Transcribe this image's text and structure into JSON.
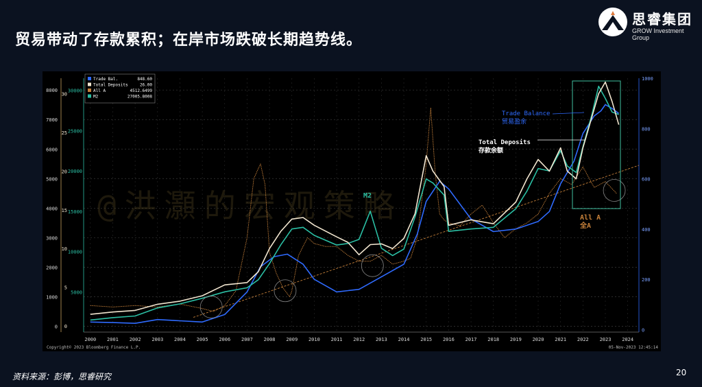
{
  "slide": {
    "title": "贸易带动了存款累积；在岸市场跌破长期趋势线。",
    "logo_cn": "思睿集团",
    "logo_en": "GROW Investment Group",
    "source": "资料来源：彭博，思睿研究",
    "page_number": "20"
  },
  "chart_data": {
    "type": "line",
    "copyright": "Copyright© 2023 Bloomberg Finance L.P.",
    "timestamp": "05-Nov-2023 12:45:14",
    "x_ticks": [
      "2000",
      "2001",
      "2002",
      "2003",
      "2004",
      "2005",
      "2006",
      "2007",
      "2008",
      "2009",
      "2010",
      "2011",
      "2012",
      "2013",
      "2014",
      "2015",
      "2016",
      "2017",
      "2018",
      "2019",
      "2020",
      "2021",
      "2022",
      "2023",
      "2024"
    ],
    "xlim": [
      1999.7,
      2024.5
    ],
    "axes": {
      "allA": {
        "ticks": [
          "0",
          "1000",
          "2000",
          "3000",
          "4000",
          "5000",
          "6000",
          "7000",
          "8000"
        ],
        "ylim": [
          -200,
          8400
        ]
      },
      "deposits": {
        "ticks": [
          "0",
          "5",
          "10",
          "15",
          "20",
          "25",
          "30"
        ],
        "ylim": [
          -0.8,
          32
        ]
      },
      "m2": {
        "ticks": [
          "5000",
          "10000",
          "15000",
          "20000",
          "25000",
          "30000"
        ],
        "ylim": [
          0,
          31500
        ]
      },
      "trade": {
        "ticks": [
          "0",
          "200",
          "400",
          "600",
          "800",
          "1000"
        ],
        "ylim": [
          -10,
          1000
        ]
      }
    },
    "legend": [
      {
        "name": "Trade Bal.",
        "value": "848.60",
        "color": "#2f6bff"
      },
      {
        "name": "Total Deposits",
        "value": "26.00",
        "color": "#f2e6d0"
      },
      {
        "name": "All A",
        "value": "4512.6499",
        "color": "#c7813a"
      },
      {
        "name": "M2",
        "value": "27005.8008",
        "color": "#2bbfa4"
      }
    ],
    "annotations": {
      "trade_en": "Trade Balance",
      "trade_cn": "贸易盈余",
      "deposits_en": "Total Deposits",
      "deposits_cn": "存款余额",
      "alla_en": "All A",
      "alla_cn": "全A",
      "m2": "M2",
      "watermark": "@洪灝的宏观策略"
    },
    "series": [
      {
        "name": "Trade Bal.",
        "axis": "trade",
        "color": "#2f6bff",
        "x": [
          2000,
          2001,
          2002,
          2003,
          2004,
          2005,
          2006,
          2007,
          2007.6,
          2008.2,
          2008.8,
          2009.5,
          2010,
          2011,
          2012,
          2013,
          2014,
          2014.6,
          2015,
          2015.6,
          2016,
          2017,
          2018,
          2019,
          2020,
          2020.5,
          2021,
          2021.6,
          2022,
          2022.5,
          2022.8,
          2023,
          2023.3,
          2023.6
        ],
        "y": [
          30,
          28,
          25,
          40,
          35,
          30,
          60,
          150,
          250,
          290,
          300,
          260,
          200,
          150,
          160,
          210,
          260,
          380,
          510,
          590,
          560,
          440,
          390,
          400,
          430,
          470,
          580,
          670,
          780,
          850,
          870,
          895,
          880,
          860
        ]
      },
      {
        "name": "Total Deposits",
        "axis": "deposits",
        "color": "#f2e6d0",
        "x": [
          2000,
          2001,
          2002,
          2003,
          2004,
          2005,
          2006,
          2007,
          2007.5,
          2008,
          2008.5,
          2009,
          2009.5,
          2010,
          2011,
          2011.5,
          2012,
          2012.5,
          2013,
          2013.5,
          2014,
          2014.5,
          2015,
          2015.3,
          2015.8,
          2016,
          2017,
          2018,
          2019,
          2019.5,
          2020,
          2020.5,
          2021,
          2021.3,
          2021.7,
          2022,
          2022.4,
          2022.7,
          2023,
          2023.3,
          2023.6
        ],
        "y": [
          1.5,
          1.8,
          2,
          2.8,
          3.2,
          3.9,
          5.3,
          5.6,
          7,
          10,
          12.2,
          13.8,
          14,
          13,
          11.5,
          10.8,
          9.2,
          10.5,
          10.6,
          10,
          11.3,
          14.5,
          22,
          20,
          18,
          13,
          13.7,
          13.2,
          16,
          19,
          21.5,
          20,
          23,
          20,
          19,
          23,
          27,
          30,
          31.5,
          29,
          26
        ]
      },
      {
        "name": "M2",
        "axis": "m2",
        "color": "#2bbfa4",
        "x": [
          2000,
          2001,
          2002,
          2003,
          2004,
          2005,
          2006,
          2007,
          2007.5,
          2008,
          2008.5,
          2009,
          2009.5,
          2010,
          2011,
          2011.5,
          2012,
          2012.5,
          2013,
          2013.5,
          2014,
          2014.5,
          2015,
          2015.3,
          2015.8,
          2016,
          2017,
          2018,
          2019,
          2019.5,
          2020,
          2020.5,
          2021,
          2021.3,
          2021.7,
          2022,
          2022.4,
          2022.7,
          2023,
          2023.3,
          2023.6
        ],
        "y": [
          1500,
          1800,
          2000,
          3000,
          3500,
          4200,
          5000,
          5500,
          6500,
          8500,
          10800,
          12800,
          13000,
          12000,
          10800,
          11000,
          11500,
          15000,
          10400,
          9500,
          10300,
          14300,
          19000,
          18500,
          17000,
          12500,
          12800,
          13000,
          15300,
          17500,
          20300,
          20000,
          22500,
          20600,
          19800,
          23000,
          27000,
          30500,
          29000,
          27300,
          27000
        ]
      },
      {
        "name": "All A",
        "axis": "allA",
        "color": "#c7813a",
        "x": [
          2000,
          2001,
          2002,
          2003,
          2004,
          2005,
          2005.5,
          2006,
          2006.5,
          2007,
          2007.3,
          2007.6,
          2007.8,
          2008,
          2008.3,
          2008.6,
          2008.9,
          2009,
          2009.3,
          2009.7,
          2010,
          2010.5,
          2011,
          2011.5,
          2012,
          2012.5,
          2013,
          2013.5,
          2014,
          2014.3,
          2014.6,
          2015,
          2015.2,
          2015.4,
          2015.6,
          2015.8,
          2016,
          2016.5,
          2017,
          2017.5,
          2018,
          2018.5,
          2019,
          2019.5,
          2020,
          2020.5,
          2021,
          2021.5,
          2022,
          2022.5,
          2023,
          2023.5
        ],
        "y": [
          700,
          650,
          700,
          650,
          750,
          600,
          500,
          700,
          1200,
          3000,
          5000,
          5500,
          4800,
          2500,
          1800,
          1300,
          1000,
          1200,
          2400,
          3000,
          2800,
          2700,
          2700,
          2400,
          2200,
          2200,
          2400,
          2100,
          2200,
          2300,
          3000,
          5500,
          7400,
          5200,
          3800,
          3600,
          3500,
          3400,
          3800,
          4100,
          3500,
          3000,
          3300,
          3500,
          3800,
          4500,
          5000,
          4800,
          5400,
          4700,
          4900,
          4500
        ]
      }
    ],
    "trendline": {
      "axis": "allA",
      "x": [
        2004.6,
        2024.5
      ],
      "y": [
        300,
        5450
      ]
    }
  }
}
